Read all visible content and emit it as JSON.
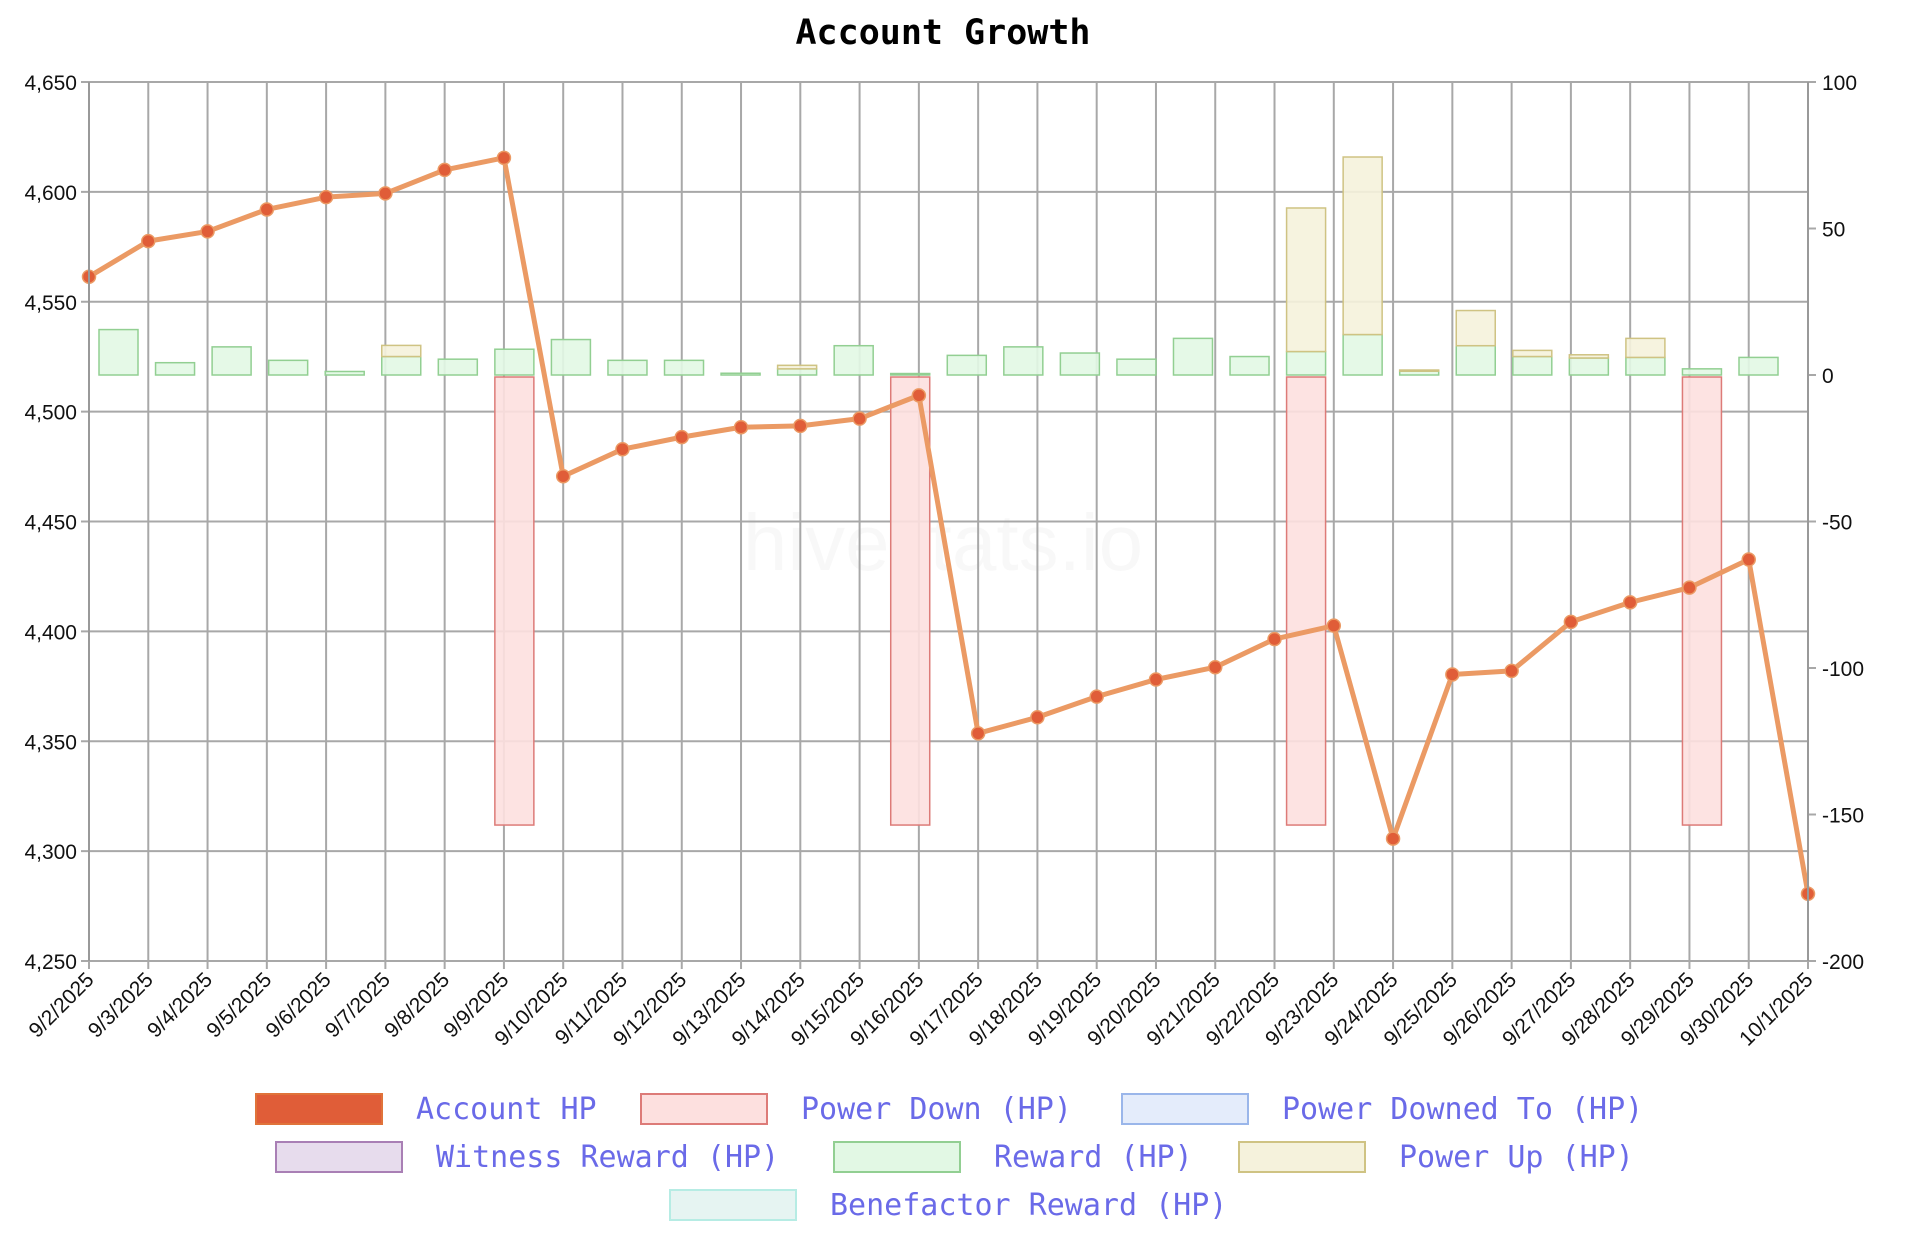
{
  "chart_data": {
    "type": "line",
    "title": "Account Growth",
    "watermark": "hivestats.io",
    "categories": [
      "9/2/2025",
      "9/3/2025",
      "9/4/2025",
      "9/5/2025",
      "9/6/2025",
      "9/7/2025",
      "9/8/2025",
      "9/9/2025",
      "9/10/2025",
      "9/11/2025",
      "9/12/2025",
      "9/13/2025",
      "9/14/2025",
      "9/15/2025",
      "9/16/2025",
      "9/17/2025",
      "9/18/2025",
      "9/19/2025",
      "9/20/2025",
      "9/21/2025",
      "9/22/2025",
      "9/23/2025",
      "9/24/2025",
      "9/25/2025",
      "9/26/2025",
      "9/27/2025",
      "9/28/2025",
      "9/29/2025",
      "9/30/2025",
      "10/1/2025"
    ],
    "y_left": {
      "ylim": [
        4250,
        4650
      ],
      "ticks": [
        4250,
        4300,
        4350,
        4400,
        4450,
        4500,
        4550,
        4600,
        4650
      ],
      "tick_labels": [
        "4,250",
        "4,300",
        "4,350",
        "4,400",
        "4,450",
        "4,500",
        "4,550",
        "4,600",
        "4,650"
      ]
    },
    "y_right": {
      "ylim": [
        -200,
        100
      ],
      "ticks": [
        -200,
        -150,
        -100,
        -50,
        0,
        50,
        100
      ],
      "tick_labels": [
        "-200",
        "-150",
        "-100",
        "-50",
        "0",
        "50",
        "100"
      ]
    },
    "grid": true,
    "legend_position": "bottom",
    "series": [
      {
        "name": "Account HP",
        "type": "line",
        "axis": "left",
        "color": "#e05d38",
        "line_color": "#eb9a64",
        "values": [
          4561.4,
          4577.6,
          4582,
          4592,
          4597.6,
          4599.3,
          4610,
          4615.5,
          4470.6,
          4482.9,
          4488.4,
          4492.9,
          4493.5,
          4496.8,
          4507.4,
          4353.6,
          4360.9,
          4370.3,
          4378.1,
          4383.7,
          4396.5,
          4402.6,
          4305.7,
          4380.4,
          4382,
          4404.3,
          4413.2,
          4419.9,
          4432.7,
          4280.6
        ]
      },
      {
        "name": "Power Down (HP)",
        "type": "bar",
        "axis": "right",
        "fill": "#fde0df",
        "stroke": "#dd7b78",
        "values": [
          0,
          0,
          0,
          0,
          0,
          0,
          0,
          -153.6,
          0,
          0,
          0,
          0,
          0,
          0,
          -153.6,
          0,
          0,
          0,
          0,
          0,
          0,
          -153.6,
          0,
          0,
          0,
          0,
          0,
          0,
          -153.6,
          0
        ]
      },
      {
        "name": "Power Downed To (HP)",
        "type": "bar",
        "axis": "right",
        "fill": "#e4ecfb",
        "stroke": "#9ab6ea",
        "values": [
          0,
          0,
          0,
          0,
          0,
          0,
          0,
          0,
          0,
          0,
          0,
          0,
          0,
          0,
          0,
          0,
          0,
          0,
          0,
          0,
          0,
          0,
          0,
          0,
          0,
          0,
          0,
          0,
          0,
          0
        ]
      },
      {
        "name": "Witness Reward (HP)",
        "type": "bar",
        "axis": "right",
        "fill": "#e7dced",
        "stroke": "#a97fb5",
        "values": [
          0,
          0,
          0,
          0,
          0,
          0,
          0,
          0,
          0,
          0,
          0,
          0,
          0,
          0,
          0,
          0,
          0,
          0,
          0,
          0,
          0,
          0,
          0,
          0,
          0,
          0,
          0,
          0,
          0,
          0
        ]
      },
      {
        "name": "Reward (HP)",
        "type": "bar",
        "axis": "right",
        "fill": "#e2f8e4",
        "stroke": "#92cf92",
        "values": [
          15.5,
          4.2,
          9.6,
          5,
          1.2,
          6.3,
          5.4,
          8.8,
          12.1,
          5,
          5,
          0.6,
          2.1,
          10,
          0.5,
          6.7,
          9.6,
          7.5,
          5.4,
          12.5,
          6.3,
          8,
          13.8,
          1.3,
          10,
          6.3,
          5.8,
          6,
          2.1,
          6
        ]
      },
      {
        "name": "Power Up (HP)",
        "type": "bar",
        "axis": "right",
        "fill": "#f5f2dc",
        "stroke": "#cfc383",
        "values": [
          0,
          0,
          0,
          0,
          0,
          3.8,
          0,
          0,
          0,
          0,
          0,
          0,
          1.2,
          0,
          0,
          0,
          0,
          0,
          0,
          0,
          0,
          49,
          60.6,
          0.4,
          12,
          2.1,
          1.1,
          6.5,
          0,
          0
        ]
      },
      {
        "name": "Benefactor Reward (HP)",
        "type": "bar",
        "axis": "right",
        "fill": "#e6f4f2",
        "stroke": "#b6ece4",
        "values": [
          0,
          0,
          0,
          0,
          0,
          0,
          0,
          0,
          0,
          0,
          0,
          0,
          0,
          0,
          0,
          0,
          0,
          0,
          0,
          0,
          0,
          0,
          0,
          0,
          0,
          0,
          0,
          0,
          0,
          0
        ]
      }
    ]
  }
}
